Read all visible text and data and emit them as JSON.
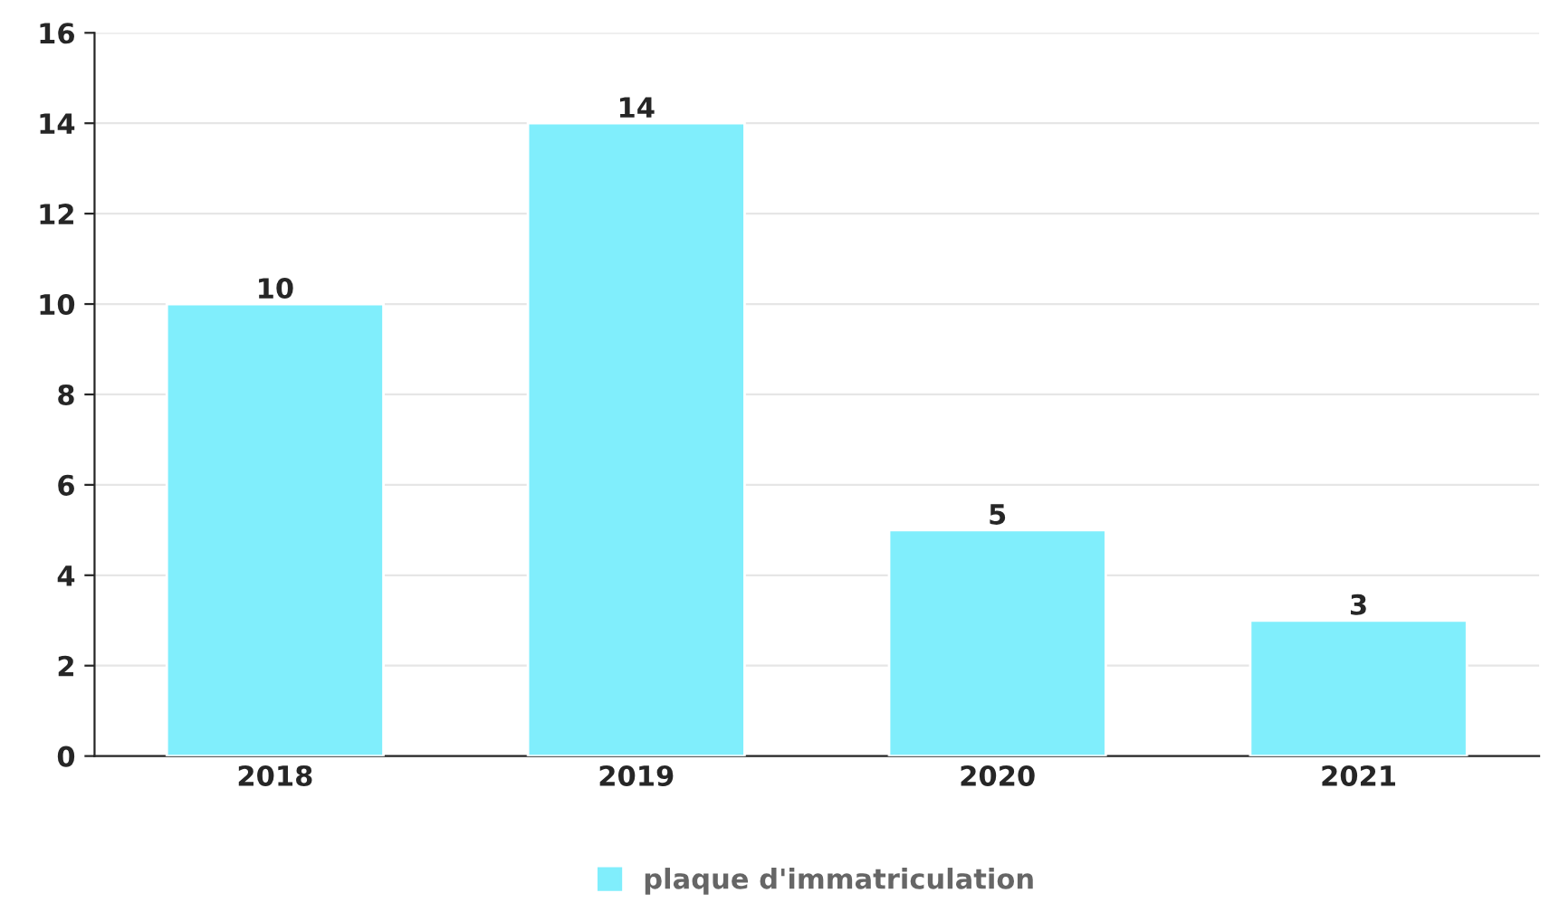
{
  "chart_data": {
    "type": "bar",
    "categories": [
      "2018",
      "2019",
      "2020",
      "2021"
    ],
    "series": [
      {
        "name": "plaque d'immatriculation",
        "color": "#80eefc",
        "values": [
          10,
          14,
          5,
          3
        ]
      }
    ],
    "ylim": [
      0,
      16
    ],
    "yticks": [
      0,
      2,
      4,
      6,
      8,
      10,
      12,
      14,
      16
    ],
    "grid": "y",
    "legend": "bottom",
    "data_labels": true
  }
}
